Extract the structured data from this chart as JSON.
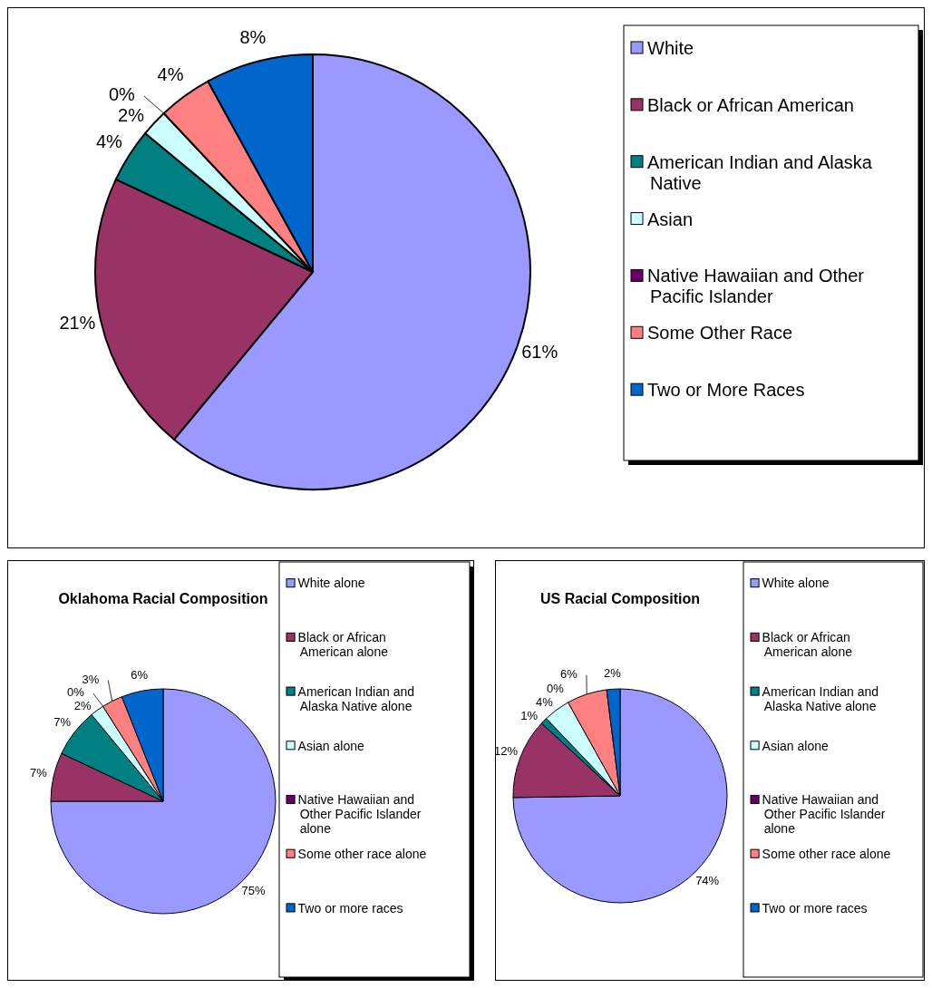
{
  "chart_data": [
    {
      "type": "pie",
      "categories": [
        "White",
        "Black or African American",
        "American Indian and Alaska Native",
        "Asian",
        "Native Hawaiian and Other Pacific Islander",
        "Some Other Race",
        "Two or More Races"
      ],
      "values": [
        61,
        21,
        4,
        2,
        0,
        4,
        8
      ],
      "colors": [
        "#9999ff",
        "#993366",
        "#008080",
        "#ccffff",
        "#660066",
        "#ff8080",
        "#0066cc"
      ],
      "value_labels": [
        "61%",
        "21%",
        "4%",
        "2%",
        "0%",
        "4%",
        "8%"
      ],
      "legend": "right"
    },
    {
      "type": "pie",
      "title": "Oklahoma Racial Composition",
      "categories": [
        "White alone",
        "Black or African American alone",
        "American Indian and Alaska Native alone",
        "Asian alone",
        "Native Hawaiian and Other Pacific Islander alone",
        "Some other race alone",
        "Two or more races"
      ],
      "values": [
        75,
        7,
        7,
        2,
        0,
        3,
        6
      ],
      "colors": [
        "#9999ff",
        "#993366",
        "#008080",
        "#ccffff",
        "#660066",
        "#ff8080",
        "#0066cc"
      ],
      "value_labels": [
        "75%",
        "7%",
        "7%",
        "2%",
        "0%",
        "3%",
        "6%"
      ],
      "legend": "right"
    },
    {
      "type": "pie",
      "title": "US Racial Composition",
      "categories": [
        "White alone",
        "Black or African American alone",
        "American Indian and Alaska Native alone",
        "Asian alone",
        "Native Hawaiian and Other Pacific Islander alone",
        "Some other race alone",
        "Two or more races"
      ],
      "values": [
        74,
        12,
        1,
        4,
        0,
        6,
        2
      ],
      "colors": [
        "#9999ff",
        "#993366",
        "#008080",
        "#ccffff",
        "#660066",
        "#ff8080",
        "#0066cc"
      ],
      "value_labels": [
        "74%",
        "12%",
        "1%",
        "4%",
        "0%",
        "6%",
        "2%"
      ],
      "legend": "right"
    }
  ]
}
